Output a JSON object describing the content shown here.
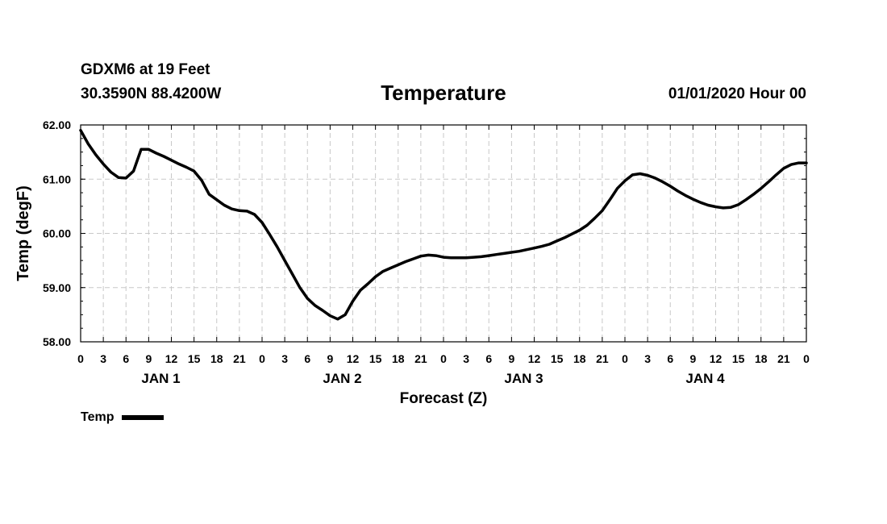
{
  "header": {
    "station": "GDXM6 at 19 Feet",
    "coords": "30.3590N 88.4200W",
    "title": "Temperature",
    "datetime": "01/01/2020 Hour 00"
  },
  "legend": {
    "label": "Temp"
  },
  "chart_data": {
    "type": "line",
    "title": "Temperature",
    "xlabel": "Forecast (Z)",
    "ylabel": "Temp (degF)",
    "ylim": [
      58.0,
      62.0
    ],
    "yticks": [
      "58.00",
      "59.00",
      "60.00",
      "61.00",
      "62.00"
    ],
    "xlim": [
      0,
      96
    ],
    "xtick_labels": [
      "0",
      "3",
      "6",
      "9",
      "12",
      "15",
      "18",
      "21",
      "0",
      "3",
      "6",
      "9",
      "12",
      "15",
      "18",
      "21",
      "0",
      "3",
      "6",
      "9",
      "12",
      "15",
      "18",
      "21",
      "0",
      "3",
      "6",
      "9",
      "12",
      "15",
      "18",
      "21",
      "0"
    ],
    "days": [
      "JAN 1",
      "JAN 2",
      "JAN 3",
      "JAN 4"
    ],
    "grid": true,
    "series": [
      {
        "name": "Temp",
        "color": "#000000",
        "x": [
          0,
          1,
          2,
          3,
          4,
          5,
          6,
          7,
          8,
          9,
          10,
          11,
          12,
          13,
          14,
          15,
          16,
          17,
          18,
          19,
          20,
          21,
          22,
          23,
          24,
          25,
          26,
          27,
          28,
          29,
          30,
          31,
          32,
          33,
          34,
          35,
          36,
          37,
          38,
          39,
          40,
          41,
          42,
          43,
          44,
          45,
          46,
          47,
          48,
          49,
          50,
          51,
          52,
          53,
          54,
          55,
          56,
          57,
          58,
          59,
          60,
          61,
          62,
          63,
          64,
          65,
          66,
          67,
          68,
          69,
          70,
          71,
          72,
          73,
          74,
          75,
          76,
          77,
          78,
          79,
          80,
          81,
          82,
          83,
          84,
          85,
          86,
          87,
          88,
          89,
          90,
          91,
          92,
          93,
          94,
          95,
          96
        ],
        "values": [
          61.9,
          61.65,
          61.45,
          61.28,
          61.13,
          61.03,
          61.02,
          61.15,
          61.55,
          61.55,
          61.48,
          61.42,
          61.35,
          61.28,
          61.22,
          61.15,
          60.98,
          60.72,
          60.62,
          60.52,
          60.45,
          60.42,
          60.41,
          60.35,
          60.2,
          59.98,
          59.75,
          59.5,
          59.25,
          59.0,
          58.8,
          58.67,
          58.58,
          58.48,
          58.42,
          58.5,
          58.75,
          58.95,
          59.07,
          59.2,
          59.3,
          59.36,
          59.42,
          59.48,
          59.53,
          59.58,
          59.6,
          59.59,
          59.56,
          59.55,
          59.55,
          59.55,
          59.56,
          59.57,
          59.59,
          59.61,
          59.63,
          59.65,
          59.67,
          59.7,
          59.73,
          59.76,
          59.8,
          59.86,
          59.92,
          59.99,
          60.06,
          60.15,
          60.28,
          60.42,
          60.62,
          60.83,
          60.97,
          61.08,
          61.1,
          61.07,
          61.02,
          60.95,
          60.87,
          60.78,
          60.7,
          60.63,
          60.57,
          60.52,
          60.49,
          60.47,
          60.48,
          60.53,
          60.62,
          60.72,
          60.83,
          60.95,
          61.08,
          61.2,
          61.27,
          61.3,
          61.3
        ]
      }
    ]
  }
}
